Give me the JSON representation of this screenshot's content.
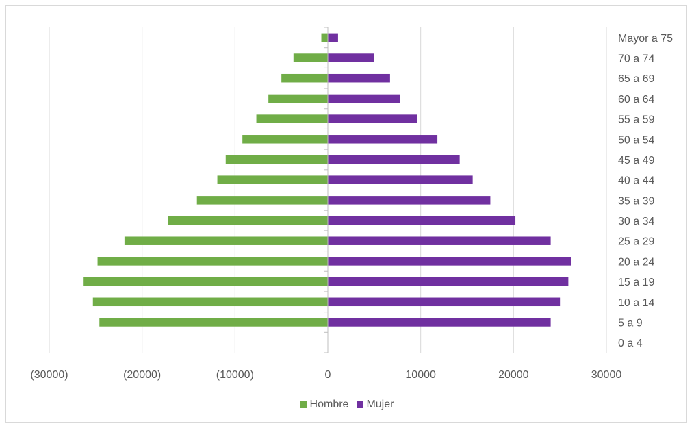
{
  "chart_data": {
    "type": "bar",
    "orientation": "horizontal",
    "categories": [
      "0 a 4",
      "5 a 9",
      "10 a 14",
      "15 a 19",
      "20 a 24",
      "25 a 29",
      "30 a 34",
      "35 a 39",
      "40 a 44",
      "45 a 49",
      "50 a 54",
      "55 a 59",
      "60 a 64",
      "65 a 69",
      "70 a 74",
      "Mayor a 75"
    ],
    "series": [
      {
        "name": "Hombre",
        "color": "#70ad47",
        "values": [
          0,
          -24600,
          -25300,
          -26300,
          -24800,
          -21900,
          -17200,
          -14100,
          -11900,
          -11000,
          -9200,
          -7700,
          -6400,
          -5000,
          -3700,
          -700
        ]
      },
      {
        "name": "Mujer",
        "color": "#7030a0",
        "values": [
          0,
          24000,
          25000,
          25900,
          26200,
          24000,
          20200,
          17500,
          15600,
          14200,
          11800,
          9600,
          7800,
          6700,
          5000,
          1100
        ]
      }
    ],
    "xlim": [
      -30000,
      30000
    ],
    "xticks": [
      -30000,
      -20000,
      -10000,
      0,
      10000,
      20000,
      30000
    ],
    "xtick_labels": [
      "(30000)",
      "(20000)",
      "(10000)",
      "0",
      "10000",
      "20000",
      "30000"
    ],
    "grid": true,
    "legend_position": "bottom",
    "title": "",
    "xlabel": "",
    "ylabel": ""
  }
}
